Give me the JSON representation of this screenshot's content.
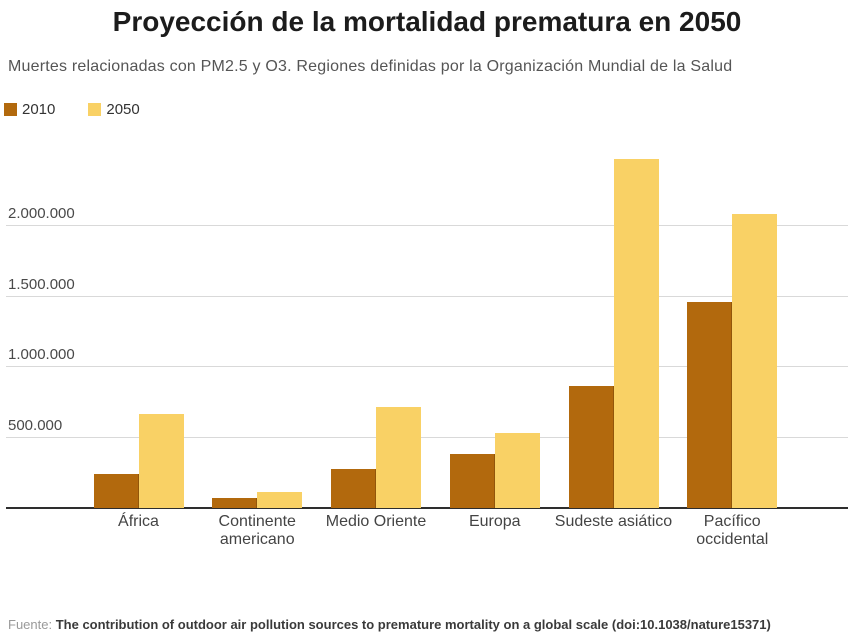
{
  "header": {
    "title": "Proyección de la mortalidad prematura en 2050",
    "subtitle": "Muertes relacionadas con PM2.5 y O3. Regiones definidas por la Organización Mundial de la Salud"
  },
  "chart_data": {
    "type": "bar",
    "title": "Proyección de la mortalidad prematura en 2050",
    "subtitle": "Muertes relacionadas con PM2.5 y O3. Regiones definidas por la Organización Mundial de la Salud",
    "categories": [
      "África",
      "Continente americano",
      "Medio Oriente",
      "Europa",
      "Sudeste asiático",
      "Pacífico occidental"
    ],
    "series": [
      {
        "name": "2010",
        "color": "#b2690d",
        "values": [
          240000,
          70000,
          280000,
          380000,
          865000,
          1465000
        ]
      },
      {
        "name": "2050",
        "color": "#f9d165",
        "values": [
          670000,
          115000,
          720000,
          530000,
          2480000,
          2085000
        ]
      }
    ],
    "xlabel": "",
    "ylabel": "",
    "ylim": [
      0,
      2540000
    ],
    "y_ticks": [
      {
        "label": "500.000",
        "value": 500000
      },
      {
        "label": "1.000.000",
        "value": 1000000
      },
      {
        "label": "1.500.000",
        "value": 1500000
      },
      {
        "label": "2.000.000",
        "value": 2000000
      }
    ],
    "grid": "horizontal",
    "legend_position": "top-left"
  },
  "footer": {
    "source_prefix": "Fuente:",
    "source_text": "The contribution of outdoor air pollution sources to premature mortality on a global scale (doi:10.1038/nature15371)"
  }
}
